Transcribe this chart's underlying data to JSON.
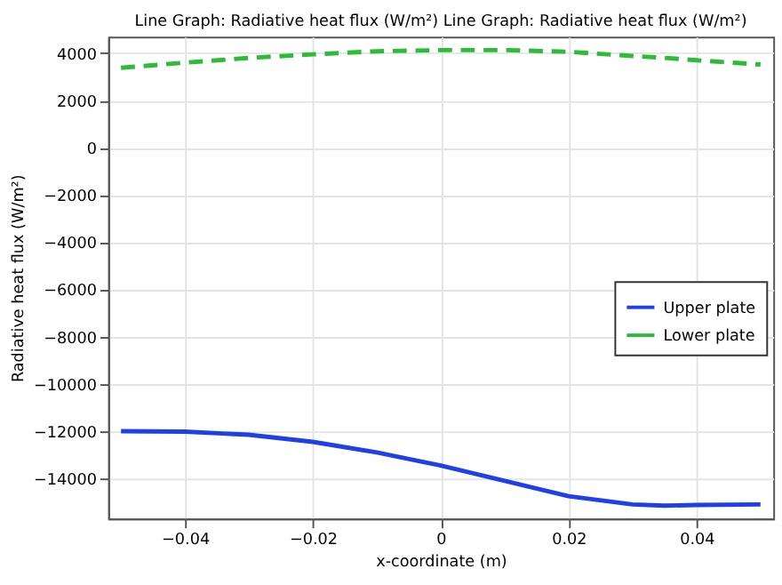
{
  "chart_data": {
    "type": "line",
    "title": "Line Graph: Radiative heat flux (W/m²)  Line Graph: Radiative heat flux (W/m²)",
    "xlabel": "x-coordinate (m)",
    "ylabel": "Radiative heat flux (W/m²)",
    "x": [
      -0.05,
      -0.04,
      -0.03,
      -0.02,
      -0.01,
      0,
      0.01,
      0.02,
      0.03,
      0.035,
      0.04,
      0.05
    ],
    "series": [
      {
        "name": "Upper plate",
        "color": "#1f3fe8",
        "line_style": "solid",
        "values": [
          -12000,
          -12020,
          -12150,
          -12450,
          -12900,
          -13450,
          -14100,
          -14750,
          -15100,
          -15150,
          -15120,
          -15100
        ]
      },
      {
        "name": "Lower plate",
        "color": "#2dbb3a",
        "line_style": "dashed",
        "values": [
          3380,
          3600,
          3800,
          3950,
          4080,
          4130,
          4130,
          4060,
          3880,
          3800,
          3700,
          3520
        ]
      }
    ],
    "xlim": [
      -0.052,
      0.052
    ],
    "xticks": [
      -0.04,
      -0.02,
      0,
      0.02,
      0.04
    ],
    "ylim": [
      -15700,
      4700
    ],
    "yticks": [
      -14000,
      -12000,
      -10000,
      -8000,
      -6000,
      -4000,
      -2000,
      0,
      2000,
      4000
    ],
    "grid": true,
    "legend": "right",
    "marker": "none"
  }
}
